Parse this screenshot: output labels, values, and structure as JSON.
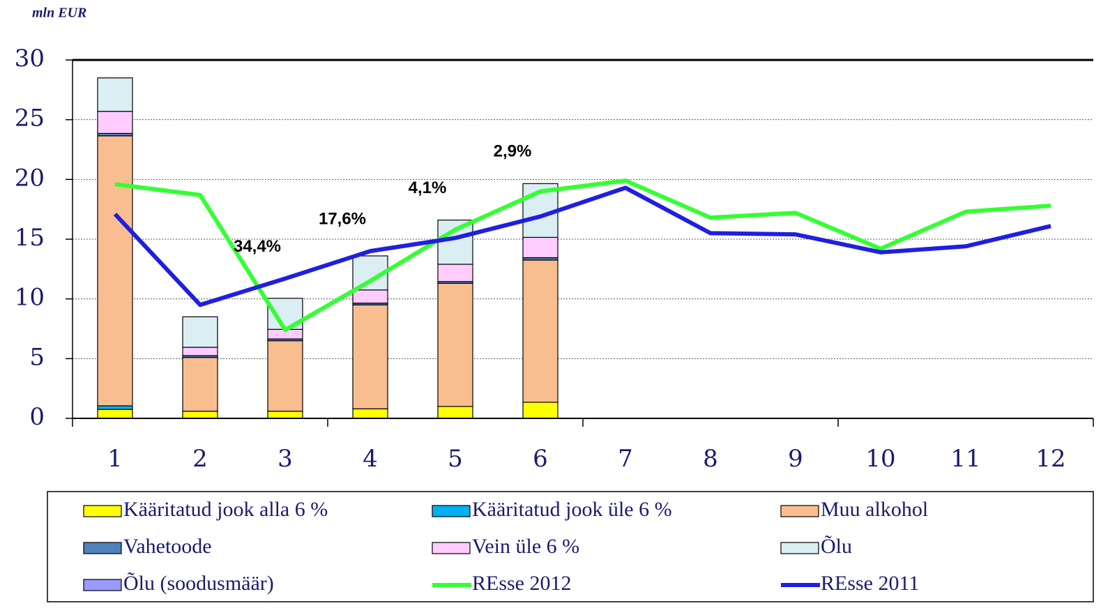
{
  "chart_data": {
    "type": "bar",
    "y_label": "mln EUR",
    "categories": [
      "1",
      "2",
      "3",
      "4",
      "5",
      "6",
      "7",
      "8",
      "9",
      "10",
      "11",
      "12"
    ],
    "ylim": [
      0,
      30
    ],
    "yticks": [
      0,
      5,
      10,
      15,
      20,
      25,
      30
    ],
    "grid": true,
    "series": [
      {
        "name": "Kääritatud jook alla 6 %",
        "type": "bar",
        "color": "#ffff00",
        "values": [
          0.75,
          0.6,
          0.6,
          0.8,
          1.0,
          1.35,
          null,
          null,
          null,
          null,
          null,
          null
        ]
      },
      {
        "name": "Kääritatud jook üle 6 %",
        "type": "bar",
        "color": "#00b0f0",
        "values": [
          0.3,
          0,
          0,
          0,
          0,
          0,
          null,
          null,
          null,
          null,
          null,
          null
        ]
      },
      {
        "name": "Muu alkohol",
        "type": "bar",
        "color": "#f9be8f",
        "values": [
          22.6,
          4.5,
          5.9,
          8.7,
          10.3,
          11.9,
          null,
          null,
          null,
          null,
          null,
          null
        ]
      },
      {
        "name": "Vahetoode",
        "type": "bar",
        "color": "#4f81bd",
        "values": [
          0.2,
          0.15,
          0.15,
          0.15,
          0.15,
          0.2,
          null,
          null,
          null,
          null,
          null,
          null
        ]
      },
      {
        "name": "Vein üle  6 %",
        "type": "bar",
        "color": "#ffccff",
        "values": [
          1.85,
          0.7,
          0.8,
          1.1,
          1.45,
          1.7,
          null,
          null,
          null,
          null,
          null,
          null
        ]
      },
      {
        "name": "Õlu",
        "type": "bar",
        "color": "#daeef3",
        "values": [
          2.8,
          2.55,
          2.6,
          2.85,
          3.7,
          4.5,
          null,
          null,
          null,
          null,
          null,
          null
        ]
      },
      {
        "name": "Õlu (soodusmäär)",
        "type": "bar",
        "color": "#9999ff",
        "values": [
          0,
          0,
          0,
          0,
          0,
          0,
          null,
          null,
          null,
          null,
          null,
          null
        ]
      },
      {
        "name": "REsse 2012",
        "type": "line",
        "color": "#33ff33",
        "values": [
          19.6,
          18.7,
          7.4,
          11.5,
          15.8,
          19.0,
          19.9,
          16.8,
          17.2,
          14.2,
          17.3,
          17.8
        ]
      },
      {
        "name": "REsse 2011",
        "type": "line",
        "color": "#1f1fe0",
        "values": [
          17.1,
          9.5,
          11.7,
          14.0,
          15.1,
          16.9,
          19.3,
          15.5,
          15.4,
          13.9,
          14.4,
          16.1
        ]
      }
    ],
    "annotations": [
      {
        "text": "34,4%",
        "category": 2
      },
      {
        "text": "17,6%",
        "category": 3
      },
      {
        "text": "4,1%",
        "category": 4
      },
      {
        "text": "2,9%",
        "category": 5
      }
    ]
  }
}
